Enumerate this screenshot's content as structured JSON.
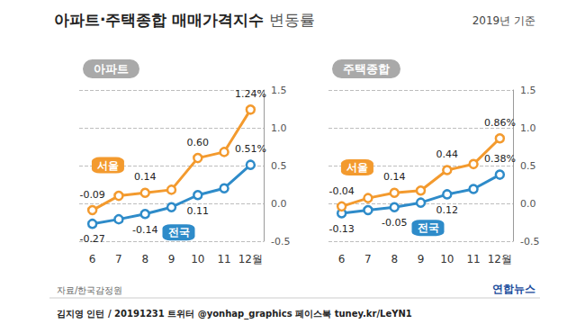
{
  "title": "아파트·주택종합 매매가격지수 변동률",
  "subtitle": "2019년 기준",
  "source": "자료/한국감정원",
  "credit": "김지영 인턴 / 20191231 트위터 @yonhap_graphics 페이스북 tuney.kr/LeYN1",
  "logo": "연합뉴스",
  "chart_data": [
    {
      "type": "line",
      "title": "아파트",
      "categories": [
        "6",
        "7",
        "8",
        "9",
        "10",
        "11",
        "12월"
      ],
      "series": [
        {
          "name": "서울",
          "color": "#f39a2e",
          "values": [
            -0.09,
            0.1,
            0.14,
            0.18,
            0.6,
            0.68,
            1.24
          ],
          "value_labels": [
            "-0.09",
            null,
            "0.14",
            null,
            "0.60",
            null,
            "1.24%"
          ]
        },
        {
          "name": "전국",
          "color": "#2e8bc9",
          "values": [
            -0.27,
            -0.21,
            -0.14,
            -0.05,
            0.11,
            0.2,
            0.51
          ],
          "value_labels": [
            "-0.27",
            null,
            "-0.14",
            null,
            "0.11",
            null,
            "0.51%"
          ]
        }
      ],
      "ylim": [
        -0.5,
        1.5
      ],
      "yticks": [
        -0.5,
        {
          "value": 0,
          "label": "0.0"
        },
        0.5,
        {
          "value": 1,
          "label": "1.0"
        },
        1.5
      ],
      "grid": true,
      "data_labels": true,
      "marker": "circle"
    },
    {
      "type": "line",
      "title": "주택종합",
      "categories": [
        "6",
        "7",
        "8",
        "9",
        "10",
        "11",
        "12월"
      ],
      "series": [
        {
          "name": "서울",
          "color": "#f39a2e",
          "values": [
            -0.04,
            0.07,
            0.14,
            0.17,
            0.44,
            0.52,
            0.86
          ],
          "value_labels": [
            "-0.04",
            null,
            "0.14",
            null,
            "0.44",
            null,
            "0.86%"
          ]
        },
        {
          "name": "전국",
          "color": "#2e8bc9",
          "values": [
            -0.13,
            -0.09,
            -0.05,
            0.01,
            0.12,
            0.19,
            0.38
          ],
          "value_labels": [
            "-0.13",
            null,
            "-0.05",
            null,
            "0.12",
            null,
            "0.38%"
          ]
        }
      ],
      "ylim": [
        -0.5,
        1.5
      ],
      "yticks": [
        -0.5,
        {
          "value": 0,
          "label": "0.0"
        },
        0.5,
        {
          "value": 1,
          "label": "1.0"
        },
        1.5
      ],
      "grid": true,
      "data_labels": true,
      "marker": "circle"
    }
  ]
}
